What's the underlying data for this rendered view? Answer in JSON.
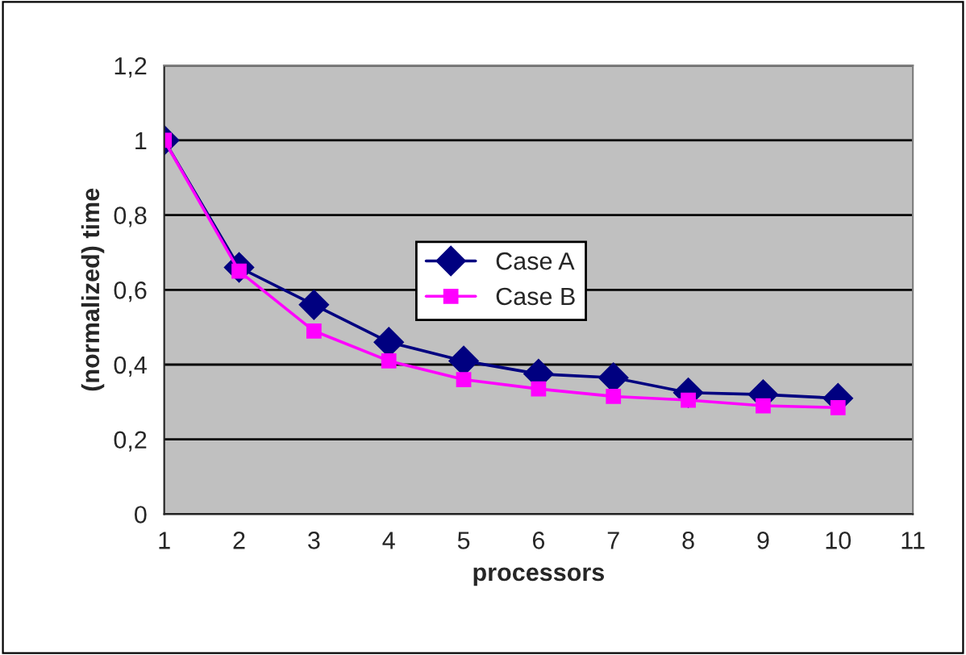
{
  "chart_data": {
    "type": "line",
    "xlabel": "processors",
    "ylabel": "(normalized) time",
    "x": [
      1,
      2,
      3,
      4,
      5,
      6,
      7,
      8,
      9,
      10
    ],
    "series": [
      {
        "name": "Case A",
        "color": "#000080",
        "marker": "diamond",
        "values": [
          1.0,
          0.66,
          0.56,
          0.46,
          0.41,
          0.375,
          0.365,
          0.325,
          0.32,
          0.31
        ]
      },
      {
        "name": "Case B",
        "color": "#ff00ff",
        "marker": "square",
        "values": [
          1.0,
          0.65,
          0.49,
          0.41,
          0.36,
          0.335,
          0.315,
          0.305,
          0.29,
          0.285
        ]
      }
    ],
    "xlim": [
      1,
      11
    ],
    "xticks": [
      1,
      2,
      3,
      4,
      5,
      6,
      7,
      8,
      9,
      10,
      11
    ],
    "ylim": [
      0,
      1.2
    ],
    "yticks": [
      0,
      {
        "value": 0.2,
        "label": "0,2"
      },
      {
        "value": 0.4,
        "label": "0,4"
      },
      {
        "value": 0.6,
        "label": "0,6"
      },
      {
        "value": 0.8,
        "label": "0,8"
      },
      1,
      {
        "value": 1.2,
        "label": "1,2"
      }
    ],
    "grid": "y",
    "legend": "center",
    "line_style": "solid"
  }
}
